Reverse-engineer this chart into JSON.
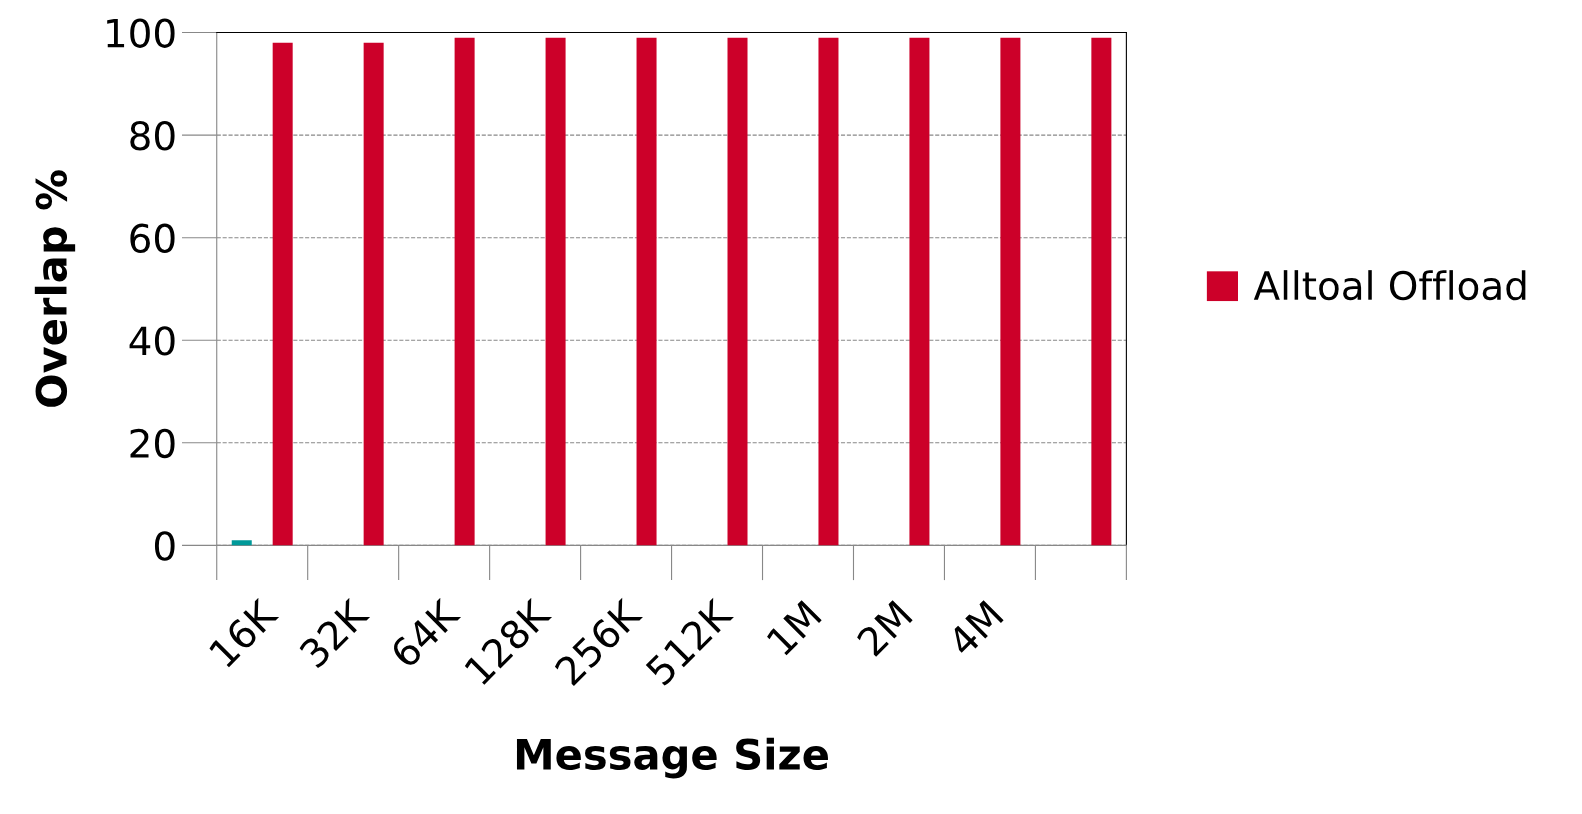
{
  "chart_data": {
    "type": "bar",
    "xlabel": "Message Size",
    "ylabel": "Overlap %",
    "categories": [
      "16K",
      "32K",
      "64K",
      "128K",
      "256K",
      "512K",
      "1M",
      "2M",
      "4M",
      null
    ],
    "series": [
      {
        "color": "#009999",
        "values": [
          1,
          null,
          null,
          null,
          null,
          null,
          null,
          null,
          null,
          null
        ]
      },
      {
        "name": "Alltoal Offload",
        "color": "#cc0029",
        "values": [
          98,
          98,
          99,
          99,
          99,
          99,
          99,
          99,
          99,
          99
        ]
      }
    ],
    "ylim": [
      0,
      100
    ],
    "yticks": [
      0,
      20,
      40,
      60,
      80,
      100
    ],
    "grid": "y",
    "legend": "right"
  }
}
